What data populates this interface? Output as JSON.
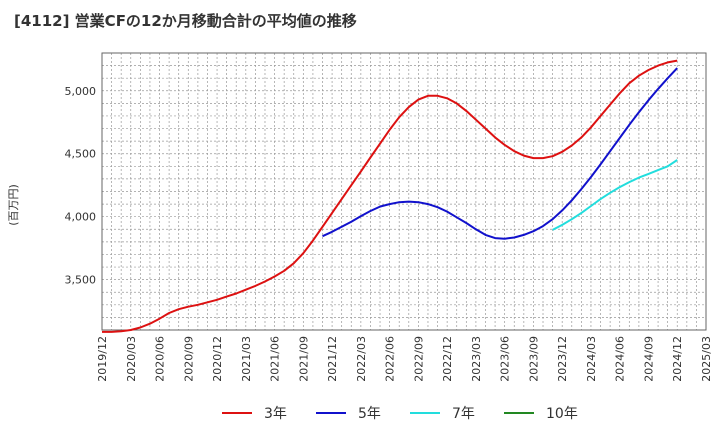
{
  "chart_data": {
    "type": "line",
    "title": "[4112]  営業CFの12か月移動合計の平均値の推移",
    "ylabel": "(百万円)",
    "xlabel": "",
    "ylim": [
      3100,
      5300
    ],
    "yticks": [
      3500,
      4000,
      4500,
      5000
    ],
    "ytick_labels": [
      "3,500",
      "4,000",
      "4,500",
      "5,000"
    ],
    "xticks": [
      "2019/12",
      "2020/03",
      "2020/06",
      "2020/09",
      "2020/12",
      "2021/03",
      "2021/06",
      "2021/09",
      "2021/12",
      "2022/03",
      "2022/06",
      "2022/09",
      "2022/12",
      "2023/03",
      "2023/06",
      "2023/09",
      "2023/12",
      "2024/03",
      "2024/06",
      "2024/09",
      "2024/12",
      "2025/03"
    ],
    "grid": true,
    "legend_position": "bottom",
    "series": [
      {
        "name": "3年",
        "color": "#dd1111",
        "points": [
          [
            "2019/12",
            3085
          ],
          [
            "2020/01",
            3085
          ],
          [
            "2020/02",
            3090
          ],
          [
            "2020/03",
            3100
          ],
          [
            "2020/04",
            3120
          ],
          [
            "2020/05",
            3150
          ],
          [
            "2020/06",
            3190
          ],
          [
            "2020/07",
            3235
          ],
          [
            "2020/08",
            3265
          ],
          [
            "2020/09",
            3285
          ],
          [
            "2020/10",
            3300
          ],
          [
            "2020/11",
            3320
          ],
          [
            "2020/12",
            3340
          ],
          [
            "2021/01",
            3365
          ],
          [
            "2021/02",
            3390
          ],
          [
            "2021/03",
            3420
          ],
          [
            "2021/04",
            3450
          ],
          [
            "2021/05",
            3485
          ],
          [
            "2021/06",
            3525
          ],
          [
            "2021/07",
            3570
          ],
          [
            "2021/08",
            3630
          ],
          [
            "2021/09",
            3710
          ],
          [
            "2021/10",
            3810
          ],
          [
            "2021/11",
            3920
          ],
          [
            "2021/12",
            4030
          ],
          [
            "2022/01",
            4140
          ],
          [
            "2022/02",
            4250
          ],
          [
            "2022/03",
            4360
          ],
          [
            "2022/04",
            4470
          ],
          [
            "2022/05",
            4580
          ],
          [
            "2022/06",
            4690
          ],
          [
            "2022/07",
            4790
          ],
          [
            "2022/08",
            4870
          ],
          [
            "2022/09",
            4930
          ],
          [
            "2022/10",
            4960
          ],
          [
            "2022/11",
            4960
          ],
          [
            "2022/12",
            4940
          ],
          [
            "2023/01",
            4900
          ],
          [
            "2023/02",
            4840
          ],
          [
            "2023/03",
            4770
          ],
          [
            "2023/04",
            4700
          ],
          [
            "2023/05",
            4630
          ],
          [
            "2023/06",
            4570
          ],
          [
            "2023/07",
            4520
          ],
          [
            "2023/08",
            4485
          ],
          [
            "2023/09",
            4465
          ],
          [
            "2023/10",
            4465
          ],
          [
            "2023/11",
            4480
          ],
          [
            "2023/12",
            4515
          ],
          [
            "2024/01",
            4565
          ],
          [
            "2024/02",
            4630
          ],
          [
            "2024/03",
            4710
          ],
          [
            "2024/04",
            4800
          ],
          [
            "2024/05",
            4890
          ],
          [
            "2024/06",
            4980
          ],
          [
            "2024/07",
            5060
          ],
          [
            "2024/08",
            5120
          ],
          [
            "2024/09",
            5165
          ],
          [
            "2024/10",
            5200
          ],
          [
            "2024/11",
            5225
          ],
          [
            "2024/12",
            5240
          ]
        ]
      },
      {
        "name": "5年",
        "color": "#1111cc",
        "points": [
          [
            "2021/11",
            3845
          ],
          [
            "2021/12",
            3880
          ],
          [
            "2022/01",
            3920
          ],
          [
            "2022/02",
            3960
          ],
          [
            "2022/03",
            4005
          ],
          [
            "2022/04",
            4045
          ],
          [
            "2022/05",
            4080
          ],
          [
            "2022/06",
            4100
          ],
          [
            "2022/07",
            4115
          ],
          [
            "2022/08",
            4120
          ],
          [
            "2022/09",
            4115
          ],
          [
            "2022/10",
            4100
          ],
          [
            "2022/11",
            4075
          ],
          [
            "2022/12",
            4040
          ],
          [
            "2023/01",
            3995
          ],
          [
            "2023/02",
            3950
          ],
          [
            "2023/03",
            3900
          ],
          [
            "2023/04",
            3855
          ],
          [
            "2023/05",
            3830
          ],
          [
            "2023/06",
            3825
          ],
          [
            "2023/07",
            3835
          ],
          [
            "2023/08",
            3855
          ],
          [
            "2023/09",
            3885
          ],
          [
            "2023/10",
            3925
          ],
          [
            "2023/11",
            3980
          ],
          [
            "2023/12",
            4050
          ],
          [
            "2024/01",
            4130
          ],
          [
            "2024/02",
            4220
          ],
          [
            "2024/03",
            4315
          ],
          [
            "2024/04",
            4415
          ],
          [
            "2024/05",
            4520
          ],
          [
            "2024/06",
            4625
          ],
          [
            "2024/07",
            4730
          ],
          [
            "2024/08",
            4830
          ],
          [
            "2024/09",
            4925
          ],
          [
            "2024/10",
            5015
          ],
          [
            "2024/11",
            5100
          ],
          [
            "2024/12",
            5180
          ]
        ]
      },
      {
        "name": "7年",
        "color": "#22dddd",
        "points": [
          [
            "2023/11",
            3895
          ],
          [
            "2023/12",
            3935
          ],
          [
            "2024/01",
            3980
          ],
          [
            "2024/02",
            4030
          ],
          [
            "2024/03",
            4085
          ],
          [
            "2024/04",
            4140
          ],
          [
            "2024/05",
            4190
          ],
          [
            "2024/06",
            4235
          ],
          [
            "2024/07",
            4275
          ],
          [
            "2024/08",
            4310
          ],
          [
            "2024/09",
            4340
          ],
          [
            "2024/10",
            4370
          ],
          [
            "2024/11",
            4400
          ],
          [
            "2024/12",
            4450
          ]
        ]
      },
      {
        "name": "10年",
        "color": "#228822",
        "points": []
      }
    ]
  }
}
